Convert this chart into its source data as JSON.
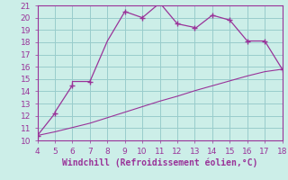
{
  "xlabel": "Windchill (Refroidissement éolien,°C)",
  "xlim": [
    4,
    18
  ],
  "ylim": [
    10,
    21
  ],
  "xticks": [
    4,
    5,
    6,
    7,
    8,
    9,
    10,
    11,
    12,
    13,
    14,
    15,
    16,
    17,
    18
  ],
  "yticks": [
    10,
    11,
    12,
    13,
    14,
    15,
    16,
    17,
    18,
    19,
    20,
    21
  ],
  "line1_x": [
    4,
    5,
    5,
    6,
    6,
    7,
    8,
    9,
    10,
    11,
    12,
    13,
    13,
    14,
    15,
    15,
    16,
    17,
    18
  ],
  "line1_y": [
    10.4,
    12.2,
    12.3,
    14.5,
    14.8,
    14.8,
    18.1,
    20.5,
    20.0,
    21.2,
    19.5,
    19.2,
    19.1,
    20.2,
    19.8,
    19.8,
    18.1,
    18.1,
    15.8
  ],
  "line2_x": [
    4,
    5,
    6,
    7,
    8,
    9,
    10,
    11,
    12,
    13,
    14,
    15,
    16,
    17,
    18
  ],
  "line2_y": [
    10.4,
    10.7,
    11.05,
    11.4,
    11.85,
    12.3,
    12.75,
    13.2,
    13.6,
    14.05,
    14.45,
    14.85,
    15.25,
    15.6,
    15.8
  ],
  "marker_x": [
    4,
    5,
    6,
    7,
    9,
    10,
    11,
    12,
    13,
    14,
    15,
    16,
    17,
    18
  ],
  "marker_y": [
    10.4,
    12.2,
    14.5,
    14.8,
    20.5,
    20.0,
    21.2,
    19.5,
    19.2,
    20.2,
    19.8,
    18.1,
    18.1,
    15.8
  ],
  "line_color": "#993399",
  "bg_color": "#cceee8",
  "grid_color": "#99cccc",
  "tick_label_size": 6.5,
  "xlabel_size": 7.0
}
